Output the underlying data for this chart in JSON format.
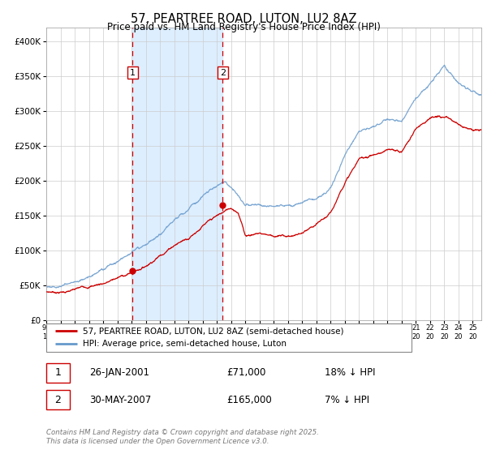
{
  "title": "57, PEARTREE ROAD, LUTON, LU2 8AZ",
  "subtitle": "Price paid vs. HM Land Registry's House Price Index (HPI)",
  "ylabel_ticks": [
    "£0",
    "£50K",
    "£100K",
    "£150K",
    "£200K",
    "£250K",
    "£300K",
    "£350K",
    "£400K"
  ],
  "ylim": [
    0,
    420000
  ],
  "xlim_start": 1995.0,
  "xlim_end": 2025.6,
  "purchase1_date": 2001.07,
  "purchase1_price": 71000,
  "purchase1_label": "1",
  "purchase2_date": 2007.41,
  "purchase2_price": 165000,
  "purchase2_label": "2",
  "legend_line1": "57, PEARTREE ROAD, LUTON, LU2 8AZ (semi-detached house)",
  "legend_line2": "HPI: Average price, semi-detached house, Luton",
  "annotation1_date": "26-JAN-2001",
  "annotation1_price": "£71,000",
  "annotation1_hpi": "18% ↓ HPI",
  "annotation2_date": "30-MAY-2007",
  "annotation2_price": "£165,000",
  "annotation2_hpi": "7% ↓ HPI",
  "footnote": "Contains HM Land Registry data © Crown copyright and database right 2025.\nThis data is licensed under the Open Government Licence v3.0.",
  "line_color_property": "#cc0000",
  "line_color_hpi": "#6699cc",
  "background_color": "#ffffff",
  "grid_color": "#cccccc",
  "shaded_color": "#ddeeff"
}
